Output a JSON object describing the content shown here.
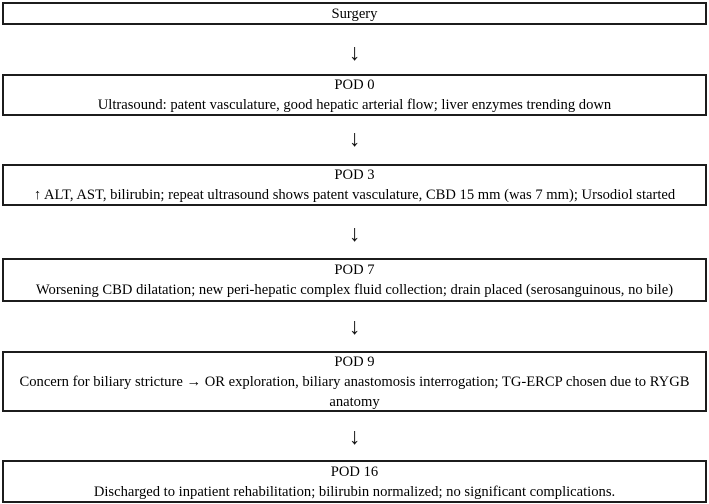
{
  "flowchart": {
    "arrow": "↓",
    "steps": [
      {
        "title": "Surgery",
        "detail": ""
      },
      {
        "title": "POD 0",
        "detail": "Ultrasound: patent vasculature, good hepatic arterial flow; liver enzymes trending down"
      },
      {
        "title": "POD 3",
        "detail": "↑ ALT, AST, bilirubin; repeat ultrasound shows patent vasculature, CBD 15 mm (was 7 mm); Ursodiol started"
      },
      {
        "title": "POD 7",
        "detail": "Worsening CBD dilatation; new peri-hepatic complex fluid collection; drain placed (serosanguinous, no bile)"
      },
      {
        "title": "POD 9",
        "detail": "Concern for biliary stricture → OR exploration, biliary anastomosis interrogation; TG-ERCP chosen due to RYGB anatomy"
      },
      {
        "title": "POD 16",
        "detail": "Discharged to inpatient rehabilitation; bilirubin normalized; no significant complications."
      }
    ]
  }
}
